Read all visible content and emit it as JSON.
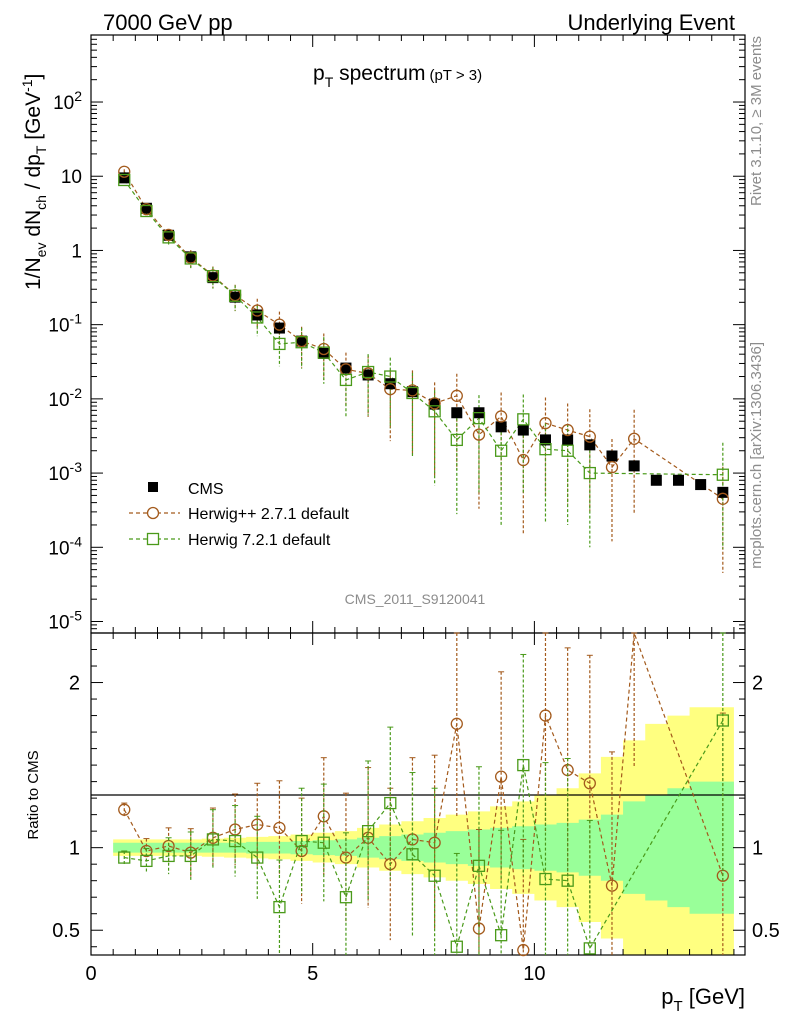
{
  "header": {
    "left": "7000 GeV pp",
    "right": "Underlying Event"
  },
  "side_text": {
    "rivet": "Rivet 3.1.10, ≥ 3M events",
    "mcplots": "mcplots.cern.ch [arXiv:1306.3436]"
  },
  "watermark": "CMS_2011_S9120041",
  "chart_data": {
    "type": "scatter",
    "title": "p_T spectrum (pT > 3)",
    "title_main": "p",
    "title_sub": "T",
    "title_rest": " spectrum",
    "title_cut": "(pT >  3)",
    "xlabel": "p_T [GeV]",
    "ylabel_main": "1/N_ev dN_ch / dp_T [GeV^-1]",
    "ylabel_ratio": "Ratio to CMS",
    "xlim": [
      0,
      14.75
    ],
    "ylim_main": [
      7e-06,
      800
    ],
    "log_y_main": true,
    "ylim_ratio": [
      0.35,
      2.3
    ],
    "x_ticks": [
      "0",
      "5",
      "10"
    ],
    "y_ticks_main": [
      "10^-5",
      "10^-4",
      "10^-3",
      "10^-2",
      "10^-1",
      "1",
      "10",
      "10^2"
    ],
    "y_ticks_ratio": [
      "0.5",
      "1",
      "2"
    ],
    "legend": {
      "position": "lower-left",
      "entries": [
        "CMS",
        "Herwig++ 2.7.1 default",
        "Herwig 7.2.1 default"
      ]
    },
    "colors": {
      "cms": "#000000",
      "herwigpp": "#a35a1c",
      "herwig7": "#4a9a1a",
      "band_inner": "#99ff99",
      "band_outer": "#ffff80"
    },
    "x": [
      0.75,
      1.25,
      1.75,
      2.25,
      2.75,
      3.25,
      3.75,
      4.25,
      4.75,
      5.25,
      5.75,
      6.25,
      6.75,
      7.25,
      7.75,
      8.25,
      8.75,
      9.25,
      9.75,
      10.25,
      10.75,
      11.25,
      11.75,
      12.25,
      12.75,
      13.25,
      13.75,
      14.25
    ],
    "series": [
      {
        "name": "CMS",
        "marker": "square-filled",
        "values": [
          9.5,
          3.7,
          1.6,
          0.82,
          0.43,
          0.235,
          0.135,
          0.09,
          0.06,
          0.041,
          0.026,
          0.021,
          0.016,
          0.0125,
          0.0085,
          0.0065,
          0.0065,
          0.0042,
          0.0038,
          0.0028,
          0.0028,
          0.0024,
          0.0017,
          0.00125,
          0.0008,
          0.0008,
          0.0007,
          0.00055
        ]
      },
      {
        "name": "Herwig++ 2.7.1 default",
        "marker": "circle-open",
        "values": [
          11.5,
          3.6,
          1.62,
          0.8,
          0.46,
          0.25,
          0.155,
          0.1,
          0.06,
          0.047,
          0.025,
          0.022,
          0.0135,
          0.013,
          0.0087,
          0.011,
          0.0033,
          0.0058,
          0.0015,
          0.0047,
          0.0038,
          0.0031,
          0.0012,
          0.0029,
          null,
          null,
          null,
          0.00045
        ]
      },
      {
        "name": "Herwig 7.2.1 default",
        "marker": "square-open",
        "values": [
          8.9,
          3.4,
          1.5,
          0.78,
          0.45,
          0.245,
          0.125,
          0.055,
          0.058,
          0.042,
          0.018,
          0.023,
          0.02,
          0.012,
          0.0068,
          0.0028,
          0.0055,
          0.002,
          0.0053,
          0.0021,
          0.002,
          0.001,
          null,
          null,
          null,
          null,
          null,
          0.00095
        ]
      }
    ],
    "ratio_series": [
      {
        "name": "Herwig++ 2.7.1 default",
        "values": [
          1.23,
          0.98,
          1.01,
          0.97,
          1.06,
          1.11,
          1.14,
          1.12,
          0.98,
          1.19,
          0.94,
          1.06,
          0.9,
          1.05,
          1.03,
          1.75,
          0.51,
          1.43,
          0.38,
          1.8,
          1.47,
          1.39,
          0.77,
          2.33,
          null,
          null,
          null,
          0.83
        ]
      },
      {
        "name": "Herwig 7.2.1 default",
        "values": [
          0.94,
          0.92,
          0.95,
          0.95,
          1.05,
          1.04,
          0.94,
          0.64,
          1.04,
          1.03,
          0.7,
          1.1,
          1.27,
          0.96,
          0.83,
          0.4,
          0.89,
          0.47,
          1.5,
          0.81,
          0.8,
          0.39,
          null,
          null,
          null,
          null,
          null,
          1.77
        ]
      }
    ],
    "band_inner_halfwidth": [
      0.03,
      0.03,
      0.03,
      0.03,
      0.03,
      0.03,
      0.035,
      0.035,
      0.04,
      0.045,
      0.05,
      0.06,
      0.07,
      0.08,
      0.09,
      0.1,
      0.11,
      0.12,
      0.13,
      0.14,
      0.15,
      0.17,
      0.2,
      0.28,
      0.32,
      0.36,
      0.4,
      0.4
    ],
    "band_outer_halfwidth": [
      0.05,
      0.05,
      0.05,
      0.05,
      0.055,
      0.06,
      0.065,
      0.07,
      0.08,
      0.09,
      0.1,
      0.12,
      0.14,
      0.16,
      0.18,
      0.2,
      0.22,
      0.25,
      0.28,
      0.32,
      0.36,
      0.45,
      0.55,
      0.65,
      0.75,
      0.8,
      0.85,
      0.85
    ]
  }
}
